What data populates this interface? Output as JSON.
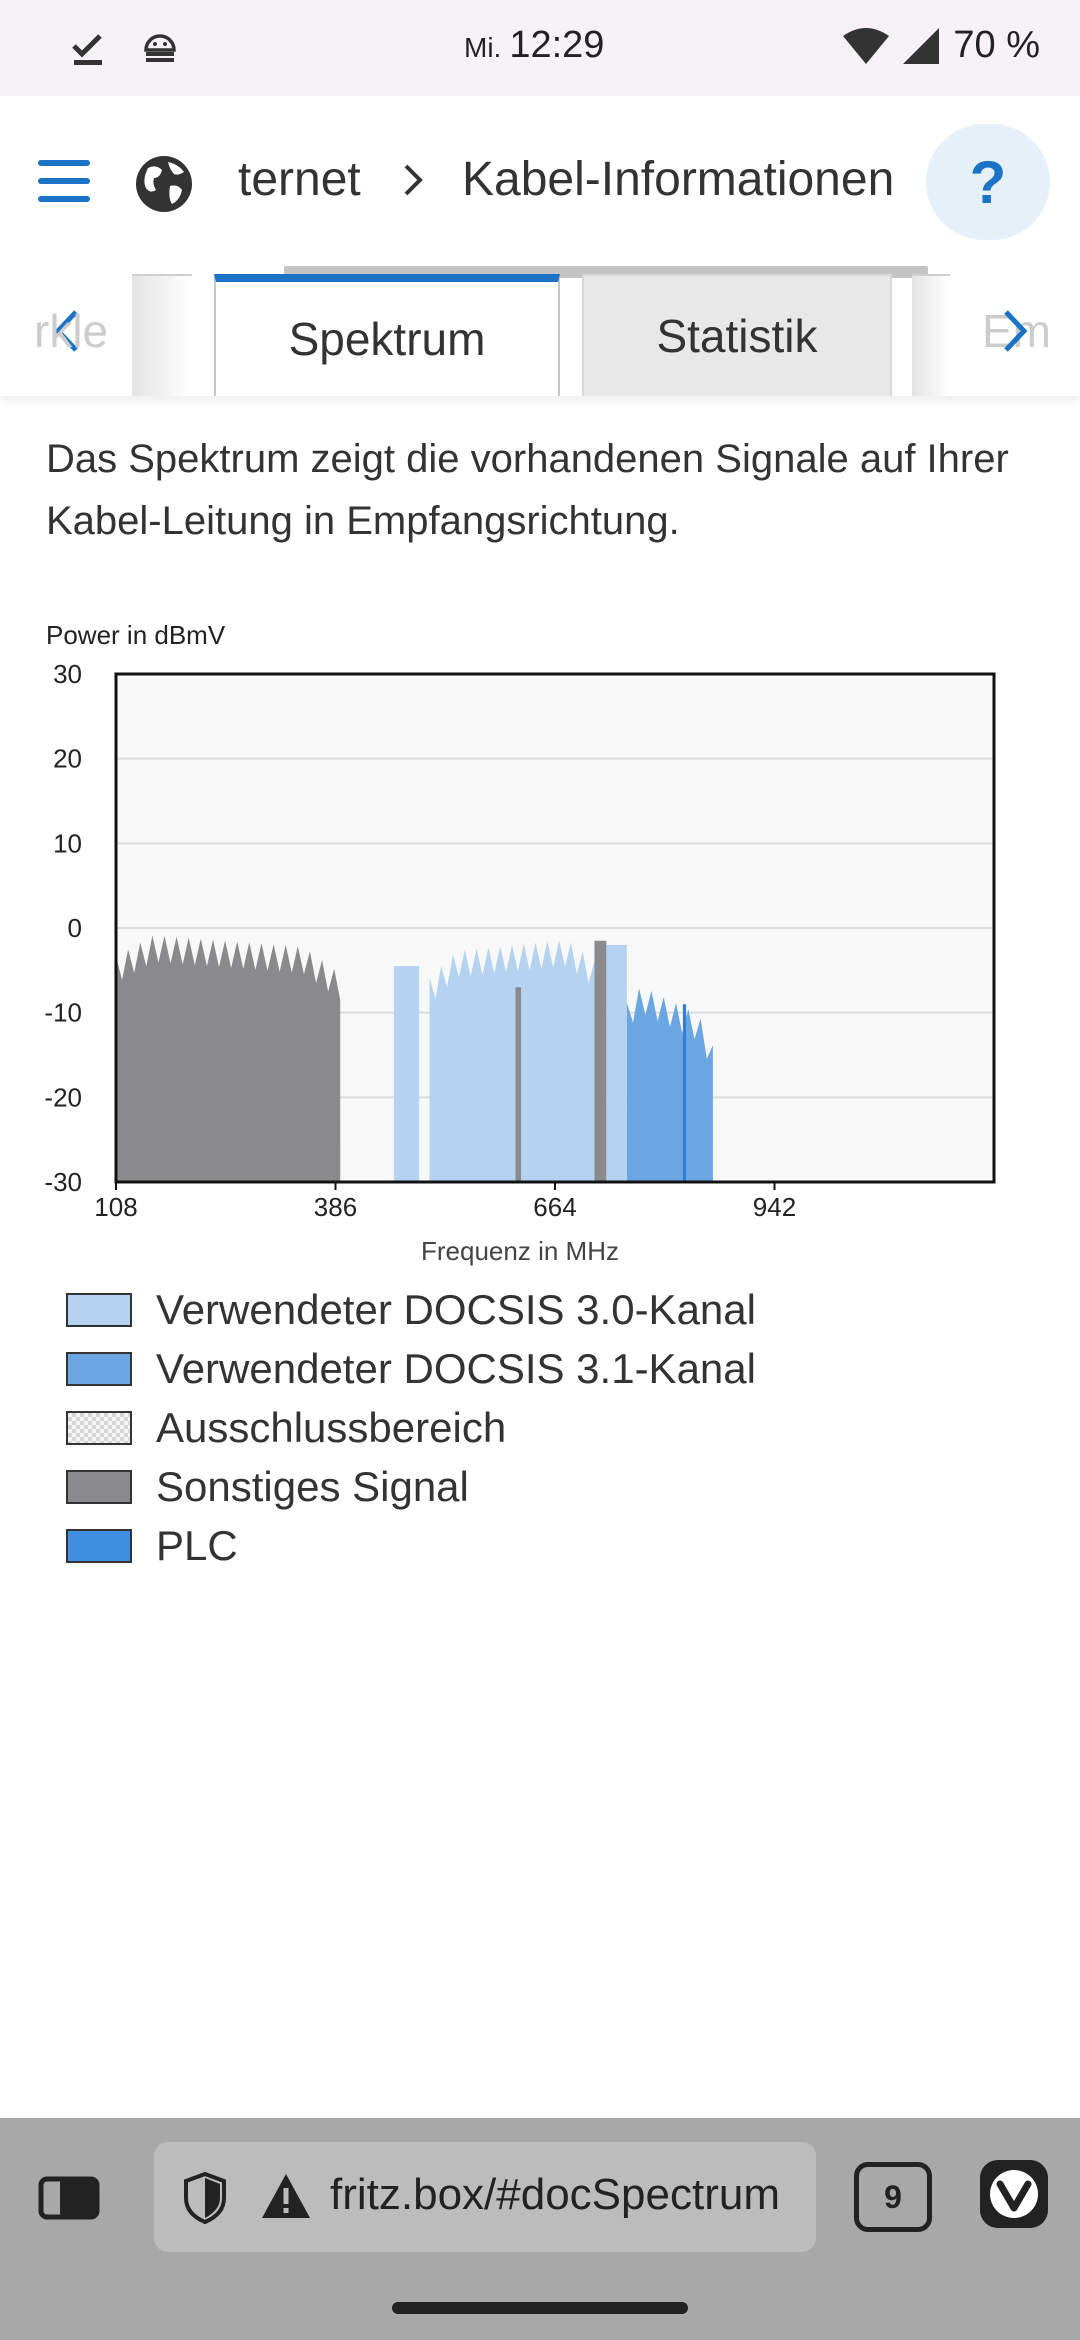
{
  "status_bar": {
    "day": "Mi.",
    "time": "12:29",
    "battery": "70 %"
  },
  "header": {
    "breadcrumb_1": "ternet",
    "breadcrumb_2": "Kabel-Informationen",
    "help_label": "?"
  },
  "tabs": {
    "left_ghost": "rkle",
    "right_ghost": "Em",
    "items": [
      {
        "label": "Spektrum",
        "active": true
      },
      {
        "label": "Statistik",
        "active": false
      }
    ]
  },
  "description": "Das Spektrum zeigt die vorhandenen Signale auf Ihrer Kabel-Leitung in Empfangsrichtung.",
  "chart_data": {
    "type": "area",
    "ylabel": "Power in dBmV",
    "xlabel": "Frequenz in MHz",
    "x_ticks": [
      108,
      386,
      664,
      942
    ],
    "y_ticks": [
      30,
      20,
      10,
      0,
      -10,
      -20,
      -30
    ],
    "y_tick_labels": [
      "30",
      "20",
      "10",
      "0",
      "-10",
      "-20",
      "-30"
    ],
    "xlim": [
      108,
      1220
    ],
    "ylim": [
      -30,
      30
    ],
    "grid": "horizontal",
    "series": [
      {
        "name": "Sonstiges Signal",
        "color": "#8a8a8c",
        "segments": [
          {
            "x_start": 108,
            "x_end": 392,
            "level_start": -0.5,
            "level_end": -2.5
          },
          {
            "x_start": 614,
            "x_end": 621,
            "level_start": -7,
            "level_end": -7
          },
          {
            "x_start": 714,
            "x_end": 729,
            "level_start": -1.5,
            "level_end": -1.5
          }
        ]
      },
      {
        "name": "Verwendeter DOCSIS 3.0-Kanal",
        "color": "#b5d3f0",
        "segments": [
          {
            "x_start": 460,
            "x_end": 492,
            "level_start": -4.5,
            "level_end": -4.5
          },
          {
            "x_start": 505,
            "x_end": 714,
            "level_start": -3,
            "level_end": -1
          },
          {
            "x_start": 729,
            "x_end": 755,
            "level_start": -2,
            "level_end": -2
          }
        ]
      },
      {
        "name": "Verwendeter DOCSIS 3.1-Kanal",
        "color": "#6aa7e2",
        "segments": [
          {
            "x_start": 755,
            "x_end": 864,
            "level_start": -6,
            "level_end": -11
          }
        ]
      },
      {
        "name": "PLC",
        "color": "#2e7fd3",
        "segments": [
          {
            "x_start": 826,
            "x_end": 830,
            "level_start": -9,
            "level_end": -9
          }
        ]
      }
    ]
  },
  "legend": [
    {
      "label": "Verwendeter DOCSIS 3.0-Kanal",
      "color": "#b5d3f0",
      "pattern": "solid"
    },
    {
      "label": "Verwendeter DOCSIS 3.1-Kanal",
      "color": "#6aa7e2",
      "pattern": "solid"
    },
    {
      "label": "Ausschlussbereich",
      "color": "#dcdcdc",
      "pattern": "checker"
    },
    {
      "label": "Sonstiges Signal",
      "color": "#8a8a8c",
      "pattern": "solid"
    },
    {
      "label": "PLC",
      "color": "#3f8ee0",
      "pattern": "solid"
    }
  ],
  "browser": {
    "url": "fritz.box/#docSpectrum",
    "tab_count": "9"
  }
}
